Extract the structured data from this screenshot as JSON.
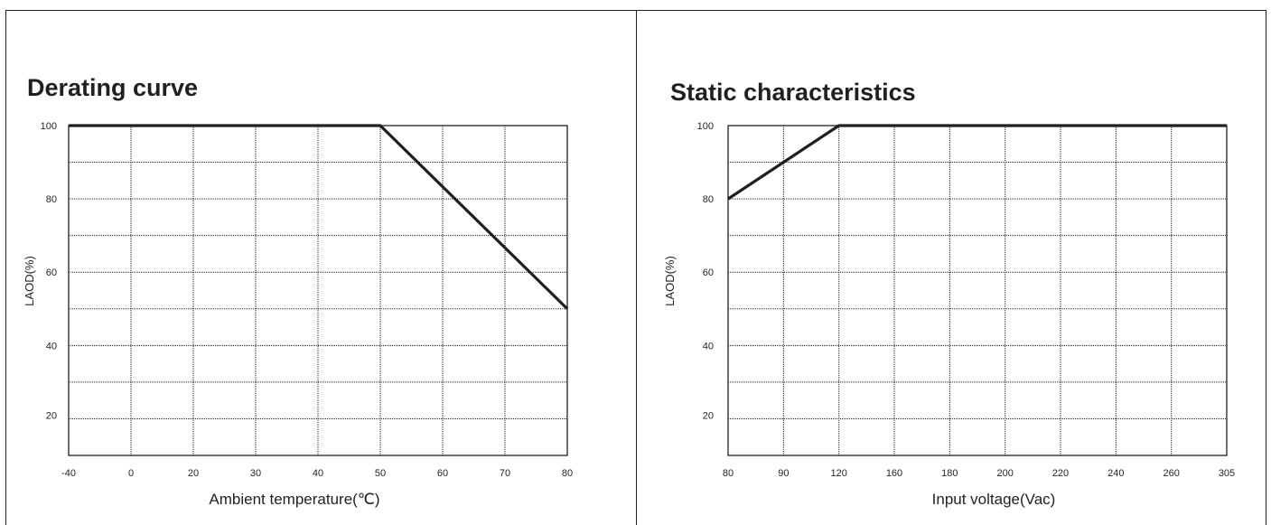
{
  "chart_data": [
    {
      "type": "line",
      "title": "Derating curve",
      "xlabel": "Ambient  temperature(℃)",
      "ylabel": "LAOD(%)",
      "x_ticks": [
        "-40",
        "0",
        "20",
        "30",
        "40",
        "50",
        "60",
        "70",
        "80"
      ],
      "y_ticks": [
        "100",
        "80",
        "60",
        "40",
        "20"
      ],
      "ylim": [
        10,
        100
      ],
      "grid": true,
      "series": [
        {
          "x": [
            "-40",
            "50",
            "80"
          ],
          "values": [
            100,
            100,
            50
          ]
        }
      ]
    },
    {
      "type": "line",
      "title": "Static characteristics",
      "xlabel": "Input voltage(Vac)",
      "ylabel": "LAOD(%)",
      "x_ticks": [
        "80",
        "90",
        "120",
        "160",
        "180",
        "200",
        "220",
        "240",
        "260",
        "305"
      ],
      "y_ticks": [
        "100",
        "80",
        "60",
        "40",
        "20"
      ],
      "ylim": [
        10,
        100
      ],
      "grid": true,
      "series": [
        {
          "x": [
            "80",
            "120",
            "305"
          ],
          "values": [
            80,
            100,
            100
          ]
        }
      ]
    }
  ],
  "colors": {
    "ink": "#231f20",
    "background": "#ffffff"
  }
}
